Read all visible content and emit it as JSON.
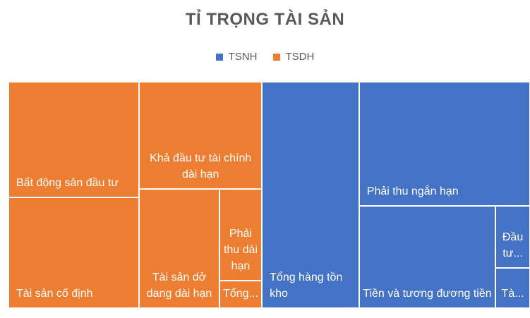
{
  "chart_data": {
    "type": "treemap",
    "title": "TỈ TRỌNG TÀI SẢN",
    "legend": {
      "placement": "top",
      "entries": [
        {
          "name": "TSNH",
          "color": "#4472C4"
        },
        {
          "name": "TSDH",
          "color": "#ED7D31"
        }
      ]
    },
    "groups": [
      {
        "name": "TSDH",
        "color": "#ED7D31",
        "items": [
          {
            "label": "Bất động sản đầu tư",
            "value": 22
          },
          {
            "label": "Tài sản cố định",
            "value": 21
          },
          {
            "label": "Khả đầu tư tài chính dài hạn",
            "value": 18
          },
          {
            "label": "Tài sản dở dang dài hạn",
            "value": 13
          },
          {
            "label": "Phải thu dài hạn",
            "value": 5.3
          },
          {
            "label": "Tổng...",
            "value": 1.6
          }
        ]
      },
      {
        "name": "TSNH",
        "color": "#4472C4",
        "items": [
          {
            "label": "Tổng hàng tồn kho",
            "value": 30
          },
          {
            "label": "Phải thu ngắn hạn",
            "value": 29
          },
          {
            "label": "Tiền và tương đương tiền",
            "value": 19
          },
          {
            "label": "Đầu tư...",
            "value": 2.9
          },
          {
            "label": "Tà...",
            "value": 1.9
          }
        ]
      }
    ]
  }
}
